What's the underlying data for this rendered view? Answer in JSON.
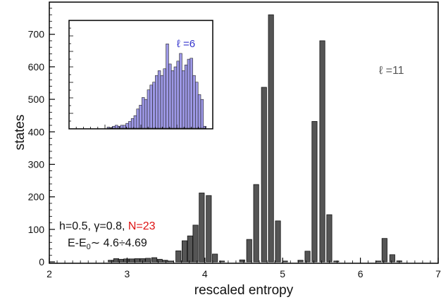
{
  "chart_data": [
    {
      "type": "bar",
      "xlabel": "rescaled entropy",
      "ylabel": "states",
      "xlim": [
        2,
        7
      ],
      "ylim": [
        0,
        760
      ],
      "xticks": [
        "2",
        "3",
        "4",
        "5",
        "6",
        "7"
      ],
      "yticks": [
        "0",
        "100",
        "200",
        "300",
        "400",
        "500",
        "600",
        "700"
      ],
      "grid": false,
      "color": "#555555",
      "annotations": [
        {
          "text": "ℓ =11",
          "color": "#555555"
        },
        {
          "text_parts": [
            "h=0.5, γ=0.8, ",
            "N=23"
          ],
          "colors": [
            "#111111",
            "#dd1111"
          ]
        },
        {
          "text_parts": [
            "E-E",
            "0",
            "∼ 4.6÷4.69"
          ]
        }
      ],
      "x": [
        2.79,
        2.86,
        2.92,
        2.99,
        3.06,
        3.13,
        3.2,
        3.27,
        3.35,
        3.42,
        3.49,
        3.56,
        3.66,
        3.74,
        3.81,
        3.88,
        3.96,
        4.05,
        4.13,
        4.22,
        4.48,
        4.57,
        4.66,
        4.76,
        4.85,
        4.94,
        5.03,
        5.23,
        5.32,
        5.41,
        5.51,
        5.6,
        5.69,
        6.23,
        6.31,
        6.41,
        6.5
      ],
      "values": [
        5,
        10,
        8,
        9,
        9,
        10,
        10,
        11,
        13,
        8,
        5,
        2,
        34,
        65,
        80,
        113,
        212,
        204,
        24,
        0,
        6,
        69,
        238,
        537,
        760,
        126,
        0,
        5,
        33,
        432,
        680,
        145,
        2,
        0,
        72,
        22,
        3
      ]
    },
    {
      "type": "bar",
      "legend": "ℓ =6",
      "color": "#9d98e6",
      "xlim": [
        0,
        1
      ],
      "ylim": [
        0,
        1
      ],
      "values": [
        0.01,
        0.0,
        0.02,
        0.03,
        0.02,
        0.03,
        0.03,
        0.05,
        0.07,
        0.1,
        0.13,
        0.2,
        0.24,
        0.32,
        0.3,
        0.4,
        0.45,
        0.48,
        0.55,
        0.6,
        0.55,
        0.62,
        0.88,
        0.67,
        0.6,
        0.64,
        0.7,
        0.78,
        0.6,
        0.66,
        0.72,
        0.73,
        0.55,
        0.48,
        0.35,
        0.3,
        0.02
      ]
    }
  ]
}
